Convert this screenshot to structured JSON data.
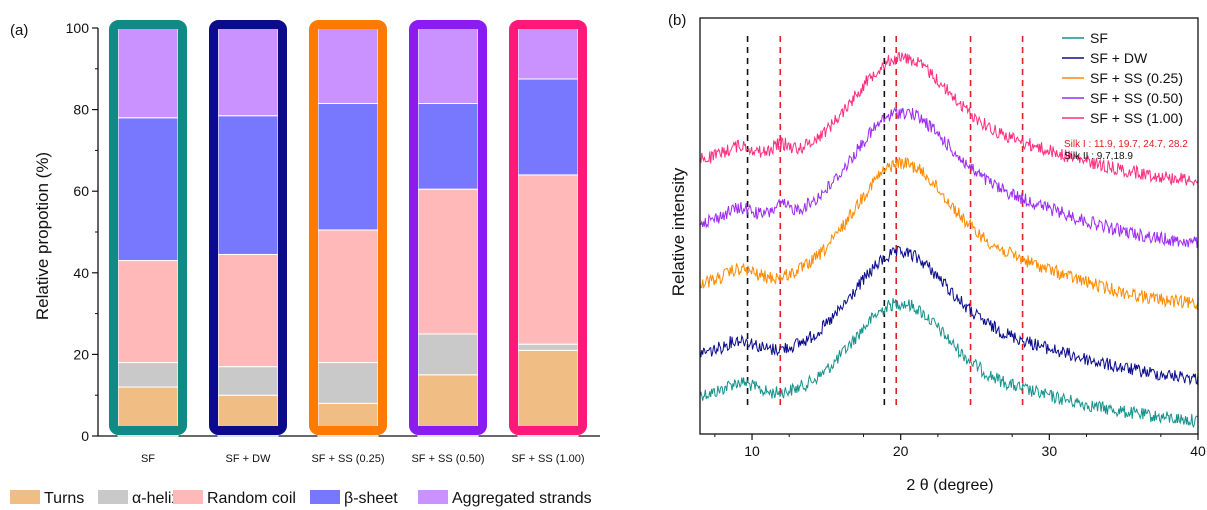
{
  "chart_data": [
    {
      "type": "bar",
      "stacked": true,
      "panel_label": "(a)",
      "ylabel": "Relative propotion (%)",
      "ylim": [
        0,
        100
      ],
      "yticks": [
        0,
        20,
        40,
        60,
        80,
        100
      ],
      "categories": [
        "SF",
        "SF + DW",
        "SF + SS (0.25)",
        "SF + SS (0.50)",
        "SF + SS (1.00)"
      ],
      "frame_colors": [
        "#0f8a84",
        "#0b0b8c",
        "#ff7a00",
        "#8b1cf0",
        "#ff1a7a"
      ],
      "series": [
        {
          "name": "Turns",
          "color": "#f0bd85",
          "values": [
            12,
            10,
            8,
            15,
            21
          ]
        },
        {
          "name": "α-helix",
          "color": "#c9c9c9",
          "values": [
            6,
            7,
            10,
            10,
            1.5
          ]
        },
        {
          "name": "Random coil",
          "color": "#ffb9b9",
          "values": [
            25,
            27.5,
            32.5,
            35.5,
            41.5
          ]
        },
        {
          "name": "β-sheet",
          "color": "#7878ff",
          "values": [
            35,
            34,
            31,
            21,
            23.5
          ]
        },
        {
          "name": "Aggregated strands",
          "color": "#c992ff",
          "values": [
            22,
            21.5,
            18.5,
            18.5,
            12.5
          ]
        }
      ]
    },
    {
      "type": "line",
      "panel_label": "(b)",
      "xlabel": "2 θ (degree)",
      "ylabel": "Relative intensity",
      "xlim": [
        6.5,
        40
      ],
      "xticks": [
        10,
        20,
        30,
        40
      ],
      "reference_lines": {
        "silk_I": {
          "positions": [
            11.9,
            19.7,
            24.7,
            28.2
          ],
          "color": "#e02020",
          "label": "Silk I : 11.9, 19.7, 24.7, 28.2"
        },
        "silk_II": {
          "positions": [
            9.7,
            18.9
          ],
          "color": "#111111",
          "label": "Silk II : 9.7,18.9"
        }
      },
      "series": [
        {
          "name": "SF",
          "color": "#17938c",
          "offset": 0
        },
        {
          "name": "SF + DW",
          "color": "#0d0d8e",
          "offset": 1
        },
        {
          "name": "SF + SS (0.25)",
          "color": "#ff8a00",
          "offset": 2
        },
        {
          "name": "SF + SS (0.50)",
          "color": "#9b2cf2",
          "offset": 3
        },
        {
          "name": "SF + SS (1.00)",
          "color": "#ff2f7f",
          "offset": 4
        }
      ]
    }
  ]
}
